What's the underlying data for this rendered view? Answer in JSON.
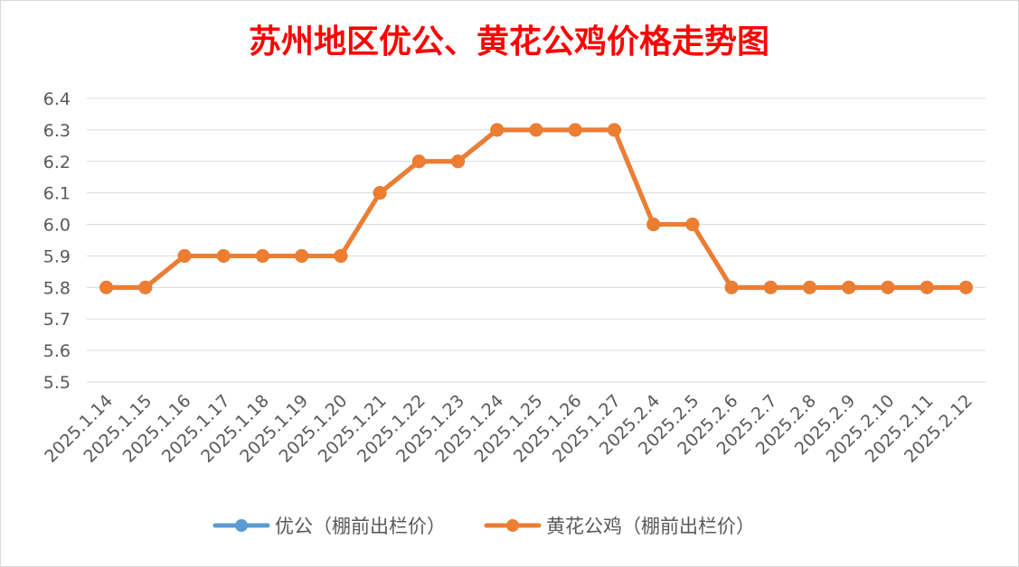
{
  "chart_data": {
    "type": "line",
    "title": "苏州地区优公、黄花公鸡价格走势图",
    "xlabel": "",
    "ylabel": "",
    "categories": [
      "2025.1.14",
      "2025.1.15",
      "2025.1.16",
      "2025.1.17",
      "2025.1.18",
      "2025.1.19",
      "2025.1.20",
      "2025.1.21",
      "2025.1.22",
      "2025.1.23",
      "2025.1.24",
      "2025.1.25",
      "2025.1.26",
      "2025.1.27",
      "2025.2.4",
      "2025.2.5",
      "2025.2.6",
      "2025.2.7",
      "2025.2.8",
      "2025.2.9",
      "2025.2.10",
      "2025.2.11",
      "2025.2.12"
    ],
    "ylim": [
      5.5,
      6.4
    ],
    "yticks": [
      "6.4",
      "6.3",
      "6.2",
      "6.1",
      "6.0",
      "5.9",
      "5.8",
      "5.7",
      "5.6",
      "5.5"
    ],
    "grid": true,
    "legend_position": "bottom",
    "title_color": "#ff0000",
    "series": [
      {
        "name": "优公（棚前出栏价）",
        "color": "#5b9bd5",
        "values": [
          5.8,
          5.8,
          5.9,
          5.9,
          5.9,
          5.9,
          5.9,
          6.1,
          6.2,
          6.2,
          6.3,
          6.3,
          6.3,
          6.3,
          6.0,
          6.0,
          5.8,
          5.8,
          5.8,
          5.8,
          5.8,
          5.8,
          5.8
        ]
      },
      {
        "name": "黄花公鸡（棚前出栏价）",
        "color": "#ed7d31",
        "values": [
          5.8,
          5.8,
          5.9,
          5.9,
          5.9,
          5.9,
          5.9,
          6.1,
          6.2,
          6.2,
          6.3,
          6.3,
          6.3,
          6.3,
          6.0,
          6.0,
          5.8,
          5.8,
          5.8,
          5.8,
          5.8,
          5.8,
          5.8
        ]
      }
    ]
  }
}
